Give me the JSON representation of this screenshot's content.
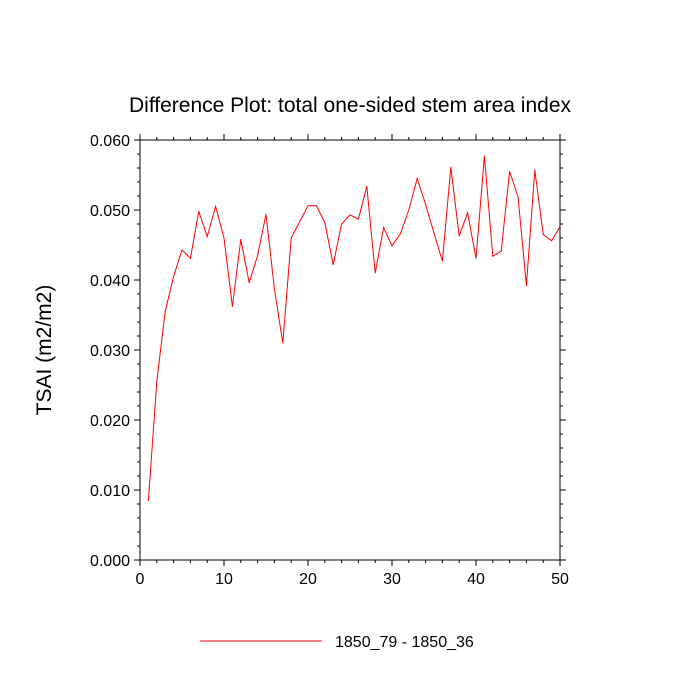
{
  "chart_data": {
    "type": "line",
    "title": "Difference Plot: total one-sided stem area index",
    "xlabel": "",
    "ylabel": "TSAI  (m2/m2)",
    "xlim": [
      0,
      50
    ],
    "ylim": [
      0.0,
      0.06
    ],
    "x_ticks": [
      "0",
      "10",
      "20",
      "30",
      "40",
      "50"
    ],
    "y_ticks": [
      "0.000",
      "0.010",
      "0.020",
      "0.030",
      "0.040",
      "0.050",
      "0.060"
    ],
    "grid": false,
    "legend_position": "bottom-center",
    "series": [
      {
        "name": "1850_79 - 1850_36",
        "color": "#ff0000",
        "x": [
          1,
          2,
          3,
          4,
          5,
          6,
          7,
          8,
          9,
          10,
          11,
          12,
          13,
          14,
          15,
          16,
          17,
          18,
          19,
          20,
          21,
          22,
          23,
          24,
          25,
          26,
          27,
          28,
          29,
          30,
          31,
          32,
          33,
          34,
          35,
          36,
          37,
          38,
          39,
          40,
          41,
          42,
          43,
          44,
          45,
          46,
          47,
          48,
          49,
          50
        ],
        "y": [
          0.0085,
          0.0255,
          0.0355,
          0.0405,
          0.0443,
          0.0431,
          0.0498,
          0.0462,
          0.0505,
          0.046,
          0.0362,
          0.0458,
          0.0396,
          0.0435,
          0.0494,
          0.0387,
          0.031,
          0.046,
          0.0483,
          0.0506,
          0.0506,
          0.0482,
          0.0422,
          0.048,
          0.0493,
          0.0487,
          0.0534,
          0.041,
          0.0475,
          0.0449,
          0.0466,
          0.05,
          0.0545,
          0.0508,
          0.0467,
          0.0427,
          0.0561,
          0.0463,
          0.0496,
          0.0431,
          0.0577,
          0.0434,
          0.0441,
          0.0555,
          0.0519,
          0.0392,
          0.0557,
          0.0465,
          0.0456,
          0.0476
        ]
      }
    ]
  }
}
